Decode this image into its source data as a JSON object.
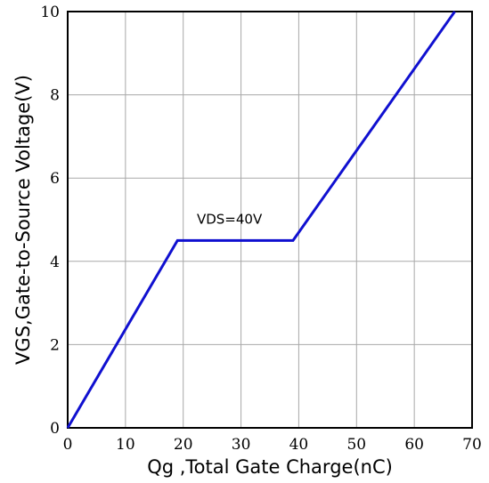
{
  "chart_data": {
    "type": "line",
    "title": "",
    "xlabel": "Qg ,Total Gate Charge(nC)",
    "ylabel": "VGS,Gate-to-Source Voltage(V)",
    "xlim": [
      0,
      70
    ],
    "ylim": [
      0,
      10
    ],
    "x_ticks": [
      0,
      10,
      20,
      30,
      40,
      50,
      60,
      70
    ],
    "y_ticks": [
      0,
      2,
      4,
      6,
      8,
      10
    ],
    "grid": true,
    "line_color": "#1010d0",
    "annotation": {
      "text": "VDS=40V",
      "x": 28,
      "y": 4.9
    },
    "series": [
      {
        "x": [
          0,
          19,
          39,
          67
        ],
        "y": [
          0,
          4.5,
          4.5,
          10
        ]
      }
    ]
  }
}
